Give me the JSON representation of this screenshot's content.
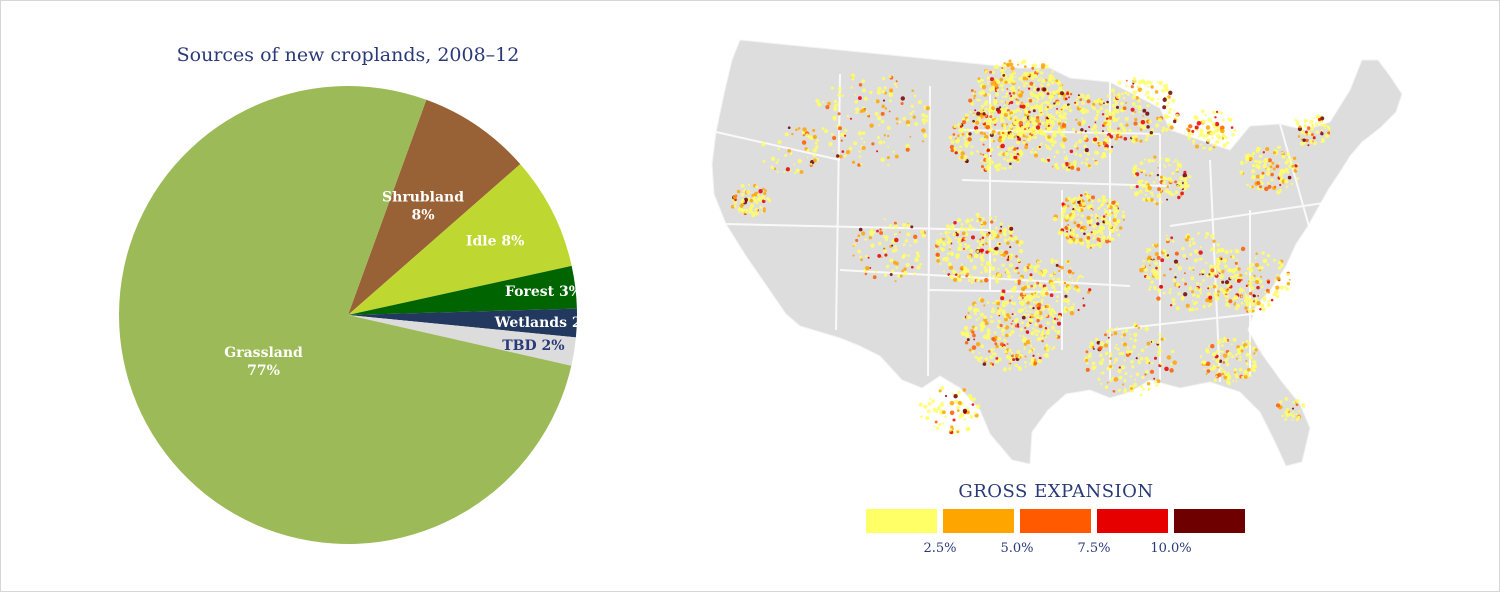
{
  "chart_data": [
    {
      "type": "pie",
      "title": "Sources of new croplands, 2008–12",
      "slices": [
        {
          "name": "Shrubland",
          "value": 8,
          "label_line1": "Shrubland",
          "label_line2": "8%",
          "color": "#996136",
          "text_color": "#ffffff"
        },
        {
          "name": "Idle",
          "value": 8,
          "label_line1": "Idle 8%",
          "color": "#bfd731",
          "text_color": "#ffffff"
        },
        {
          "name": "Forest",
          "value": 3,
          "label_line1": "Forest 3%",
          "color": "#006400",
          "text_color": "#ffffff"
        },
        {
          "name": "Wetlands",
          "value": 2,
          "label_line1": "Wetlands 2%",
          "color": "#22385f",
          "text_color": "#ffffff"
        },
        {
          "name": "TBD",
          "value": 2,
          "label_line1": "TBD 2%",
          "color": "#dcdcdc",
          "text_color": "#2a3a78"
        },
        {
          "name": "Grassland",
          "value": 77,
          "label_line1": "Grassland",
          "label_line2": "77%",
          "color": "#9cbb58",
          "text_color": "#ffffff"
        }
      ]
    },
    {
      "type": "heatmap",
      "legend_title": "GROSS EXPANSION",
      "scale_colors": [
        "#ffff66",
        "#ffa500",
        "#ff5a00",
        "#e60000",
        "#6e0000"
      ],
      "scale_ticks": [
        "2.5%",
        "5.0%",
        "7.5%",
        "10.0%"
      ]
    }
  ]
}
